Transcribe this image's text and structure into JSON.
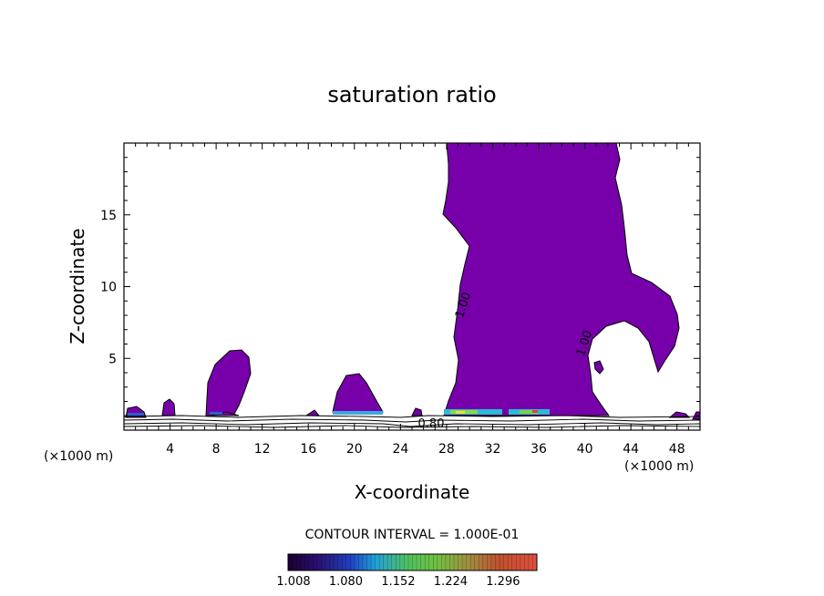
{
  "chart_data": {
    "type": "contour",
    "title": "saturation ratio",
    "xlabel": "X-coordinate",
    "ylabel": "Z-coordinate",
    "x_unit": "(×1000 m)",
    "z_unit": "(×1000 m)",
    "xlim": [
      0,
      50
    ],
    "ylim": [
      0,
      20
    ],
    "x_ticks": [
      4,
      8,
      12,
      16,
      20,
      24,
      28,
      32,
      36,
      40,
      44,
      48
    ],
    "y_ticks": [
      5,
      10,
      15
    ],
    "contour_labels": [
      "1.00",
      "1.00",
      "0.80"
    ],
    "contour_interval_text": "CONTOUR INTERVAL = 1.000E-01",
    "colorbar": {
      "tick_labels": [
        "1.008",
        "1.080",
        "1.152",
        "1.224",
        "1.296"
      ],
      "min": 1.008,
      "max": 1.35
    },
    "fill_color": "#7700aa"
  }
}
